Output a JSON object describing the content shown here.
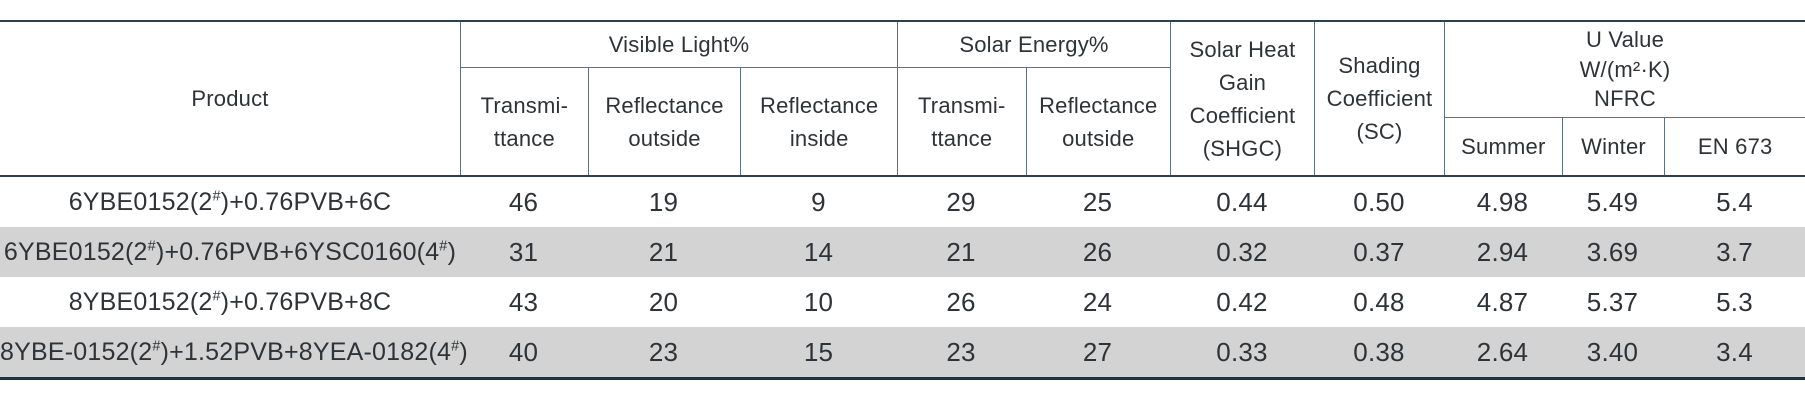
{
  "header": {
    "product": "Product",
    "visible_light": {
      "label": "Visible Light%",
      "subs": [
        "Transmi-\nttance",
        "Reflectance\noutside",
        "Reflectance\ninside"
      ]
    },
    "solar_energy": {
      "label": "Solar Energy%",
      "subs": [
        "Transmi-\nttance",
        "Reflectance\noutside"
      ]
    },
    "shgc": "Solar Heat\nGain\nCoefficient\n(SHGC)",
    "sc": "Shading\nCoefficient\n(SC)",
    "u_value": {
      "label": "U Value\nW/(m²·K)\nNFRC",
      "subs": [
        "Summer",
        "Winter",
        "EN 673"
      ]
    }
  },
  "rows": [
    {
      "product": "6YBE0152(2#)+0.76PVB+6C",
      "values": [
        "46",
        "19",
        "9",
        "29",
        "25",
        "0.44",
        "0.50",
        "4.98",
        "5.49",
        "5.4"
      ]
    },
    {
      "product": "6YBE0152(2#)+0.76PVB+6YSC0160(4#)",
      "values": [
        "31",
        "21",
        "14",
        "21",
        "26",
        "0.32",
        "0.37",
        "2.94",
        "3.69",
        "3.7"
      ]
    },
    {
      "product": "8YBE0152(2#)+0.76PVB+8C",
      "values": [
        "43",
        "20",
        "10",
        "26",
        "24",
        "0.42",
        "0.48",
        "4.87",
        "5.37",
        "5.3"
      ]
    },
    {
      "product": "8YBE-0152(2#)+1.52PVB+8YEA-0182(4#)",
      "values": [
        "40",
        "23",
        "15",
        "23",
        "27",
        "0.33",
        "0.38",
        "2.64",
        "3.40",
        "3.4"
      ]
    }
  ],
  "colors": {
    "border_dark": "#2c4050",
    "inner_line": "#5f707a",
    "row_shade": "#d3d3d3",
    "text": "#2e3338"
  }
}
